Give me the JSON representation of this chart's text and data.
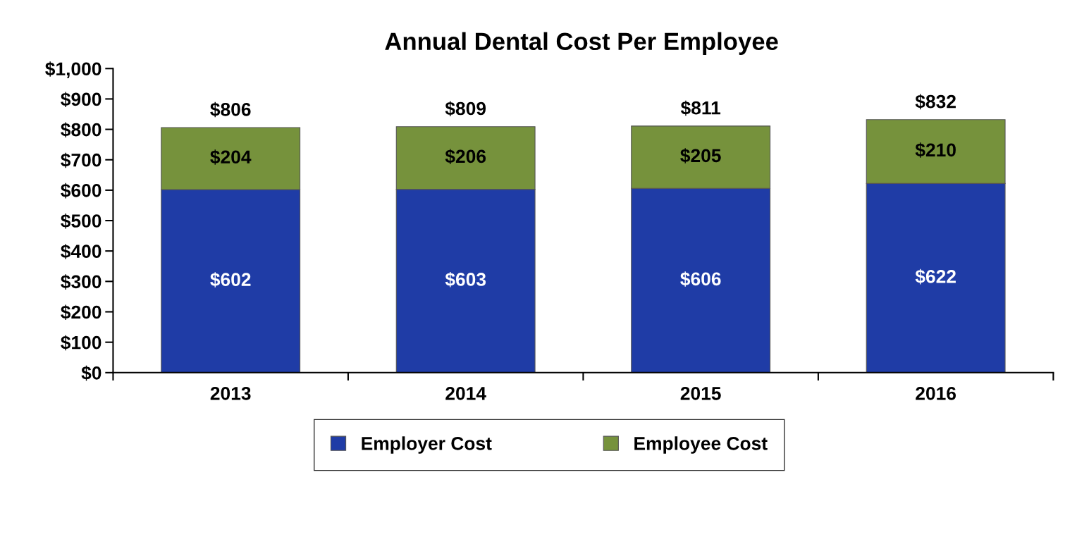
{
  "chart_data": {
    "type": "bar",
    "title": "Annual Dental Cost Per Employee",
    "categories": [
      "2013",
      "2014",
      "2015",
      "2016"
    ],
    "stacked": true,
    "series": [
      {
        "name": "Employer Cost",
        "color": "#1f3ca6",
        "values": [
          602,
          603,
          606,
          622
        ],
        "value_labels": [
          "$602",
          "$603",
          "$606",
          "$622"
        ]
      },
      {
        "name": "Employee Cost",
        "color": "#76923c",
        "values": [
          204,
          206,
          205,
          210
        ],
        "value_labels": [
          "$204",
          "$206",
          "$205",
          "$210"
        ]
      }
    ],
    "totals": [
      "$806",
      "$809",
      "$811",
      "$832"
    ],
    "ylim": [
      0,
      1000
    ],
    "yticks": [
      {
        "value": 0,
        "label": "$0"
      },
      {
        "value": 100,
        "label": "$100"
      },
      {
        "value": 200,
        "label": "$200"
      },
      {
        "value": 300,
        "label": "$300"
      },
      {
        "value": 400,
        "label": "$400"
      },
      {
        "value": 500,
        "label": "$500"
      },
      {
        "value": 600,
        "label": "$600"
      },
      {
        "value": 700,
        "label": "$700"
      },
      {
        "value": 800,
        "label": "$800"
      },
      {
        "value": 900,
        "label": "$900"
      },
      {
        "value": 1000,
        "label": "$1,000"
      }
    ],
    "grid": false,
    "legend": "bottom"
  }
}
